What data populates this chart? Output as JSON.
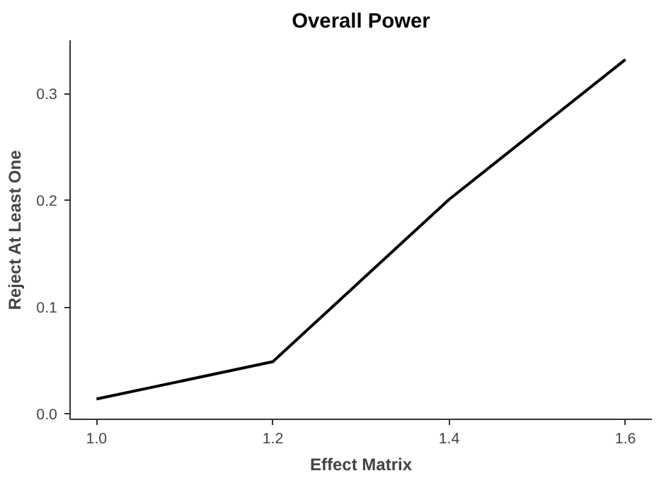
{
  "chart_data": {
    "type": "line",
    "title": "Overall Power",
    "xlabel": "Effect Matrix",
    "ylabel": "Reject At Least One",
    "x": [
      1.0,
      1.2,
      1.4,
      1.6
    ],
    "series": [
      {
        "color": "#000000",
        "values": [
          0.014,
          0.049,
          0.201,
          0.332
        ]
      }
    ],
    "xlim": [
      0.97,
      1.63
    ],
    "ylim": [
      -0.005,
      0.35
    ],
    "xticks": [
      {
        "value": 1.0,
        "label": "1.0"
      },
      1.2,
      1.4,
      1.6
    ],
    "yticks": [
      {
        "value": 0.0,
        "label": "0.0"
      },
      0.1,
      0.2,
      0.3
    ],
    "grid": false,
    "marker": "none",
    "line_style": "solid"
  }
}
